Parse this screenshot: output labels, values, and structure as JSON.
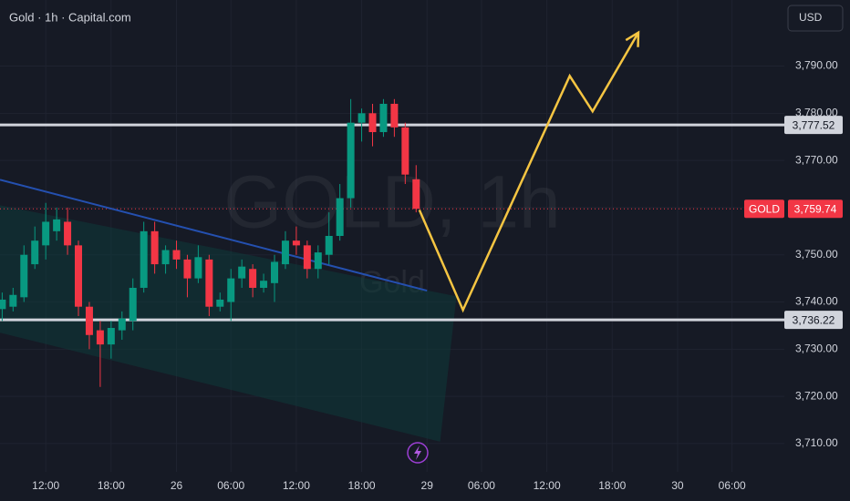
{
  "chart_data": {
    "type": "candlestick",
    "title": "Gold · 1h · Capital.com",
    "watermark": "GOLD, 1h",
    "watermark_sub": "Gold",
    "currency": "USD",
    "x": [
      0,
      1,
      2,
      3,
      4,
      5,
      6,
      7,
      8,
      9,
      10,
      11,
      12,
      13,
      14,
      15,
      16,
      17,
      18,
      19,
      20,
      21,
      22,
      23,
      24,
      25,
      26,
      27,
      28,
      29,
      30,
      31,
      32,
      33,
      34,
      35,
      36,
      37,
      38
    ],
    "open": [
      3738.5,
      3739,
      3741,
      3748,
      3752,
      3755,
      3757,
      3752,
      3739,
      3734,
      3731,
      3734,
      3736,
      3743,
      3755,
      3748,
      3751,
      3749,
      3745,
      3749,
      3739,
      3740,
      3745,
      3747,
      3743,
      3744,
      3748,
      3753,
      3752,
      3747,
      3750,
      3754,
      3762,
      3778,
      3780,
      3776,
      3782,
      3777,
      3766
    ],
    "high": [
      3742,
      3743,
      3752,
      3756,
      3761,
      3760,
      3760,
      3753,
      3740,
      3736,
      3736,
      3738,
      3745,
      3757,
      3757,
      3752,
      3753,
      3750,
      3752,
      3750,
      3742,
      3747,
      3749,
      3748,
      3746,
      3750,
      3755,
      3756,
      3753,
      3752,
      3759,
      3765,
      3783,
      3781,
      3782,
      3783,
      3783,
      3778,
      3769
    ],
    "low": [
      3736,
      3738,
      3740,
      3747,
      3749,
      3753,
      3750,
      3737,
      3730,
      3722,
      3728,
      3732,
      3734,
      3742,
      3746,
      3746,
      3747,
      3741,
      3744,
      3737,
      3738,
      3736,
      3743,
      3741,
      3742,
      3740,
      3747,
      3750,
      3745,
      3745,
      3748,
      3753,
      3760,
      3774,
      3773,
      3775,
      3775,
      3765,
      3759
    ],
    "close": [
      3740.5,
      3741.5,
      3750,
      3753,
      3757,
      3757.5,
      3752,
      3739,
      3733,
      3731,
      3734.5,
      3736.5,
      3743,
      3755,
      3748,
      3751,
      3749,
      3745,
      3749.5,
      3739,
      3740.5,
      3745,
      3747.5,
      3743,
      3744.5,
      3748.5,
      3753,
      3752,
      3747,
      3750.5,
      3754,
      3762,
      3778,
      3780,
      3776,
      3782,
      3777,
      3767,
      3759.74
    ],
    "up_color": "#089981",
    "down_color": "#f23645",
    "xlim": [
      -0.2,
      71.8
    ],
    "ylim": [
      3704,
      3804
    ],
    "xticks": [
      {
        "value": 4,
        "label": "12:00"
      },
      {
        "value": 10,
        "label": "18:00"
      },
      {
        "value": 16,
        "label": "26"
      },
      {
        "value": 21,
        "label": "06:00"
      },
      {
        "value": 27,
        "label": "12:00"
      },
      {
        "value": 33,
        "label": "18:00"
      },
      {
        "value": 39,
        "label": "29"
      },
      {
        "value": 44,
        "label": "06:00"
      },
      {
        "value": 50,
        "label": "12:00"
      },
      {
        "value": 56,
        "label": "18:00"
      },
      {
        "value": 62,
        "label": "30"
      },
      {
        "value": 67,
        "label": "06:00"
      }
    ],
    "yticks": [
      {
        "value": 3710,
        "label": "3,710.00"
      },
      {
        "value": 3720,
        "label": "3,720.00"
      },
      {
        "value": 3730,
        "label": "3,730.00"
      },
      {
        "value": 3740,
        "label": "3,740.00"
      },
      {
        "value": 3750,
        "label": "3,750.00"
      },
      {
        "value": 3760,
        "label": "3,760.00"
      },
      {
        "value": 3770,
        "label": "3,770.00"
      },
      {
        "value": 3780,
        "label": "3,780.00"
      },
      {
        "value": 3790,
        "label": "3,790.00"
      }
    ],
    "grid": true,
    "levels": [
      {
        "value": 3777.52,
        "label": "3,777.52"
      },
      {
        "value": 3736.22,
        "label": "3,736.22"
      }
    ],
    "last": {
      "name": "GOLD",
      "value": 3759.74,
      "label": "3,759.74",
      "color": "#f23645"
    },
    "channel": {
      "x": [
        -0.2,
        41.7,
        40.2,
        -0.2
      ],
      "y": [
        3760.5,
        3741.2,
        3710.4,
        3733.5
      ],
      "color": "#0f3a3a"
    },
    "trendline": {
      "x": [
        -0.2,
        39
      ],
      "y": [
        3765.9,
        3742.4
      ],
      "color": "#2450b0"
    },
    "projection": {
      "x": [
        38.3,
        42.3,
        52.1,
        54.2,
        58.4
      ],
      "y": [
        3759.5,
        3738.3,
        3787.9,
        3780.4,
        3797.1
      ],
      "color": "#f5c542"
    }
  }
}
